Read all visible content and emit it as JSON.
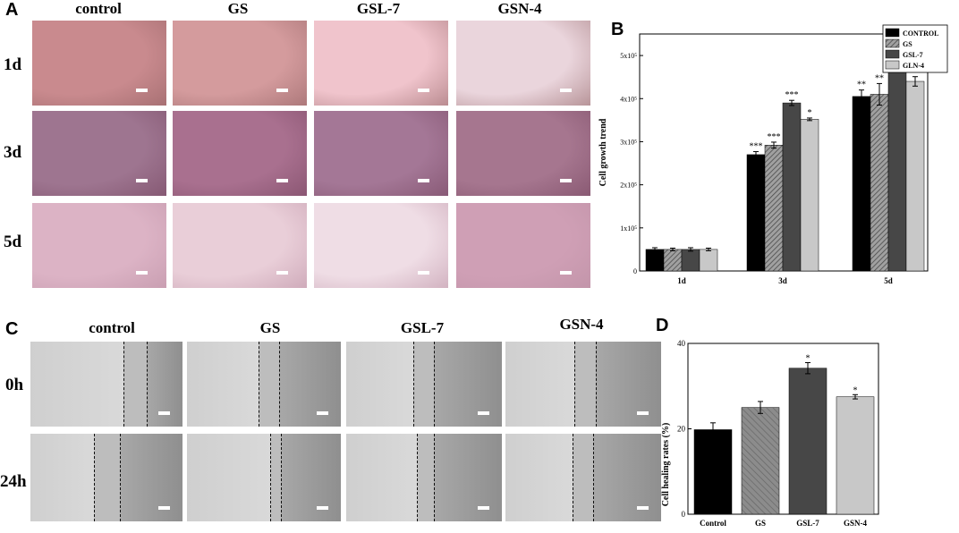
{
  "panels": {
    "A": {
      "letter": "A",
      "columns": [
        "control",
        "GS",
        "GSL-7",
        "GSN-4"
      ],
      "rows": [
        "1d",
        "3d",
        "5d"
      ]
    },
    "B": {
      "letter": "B"
    },
    "C": {
      "letter": "C",
      "columns": [
        "control",
        "GS",
        "GSL-7",
        "GSN-4"
      ],
      "rows": [
        "0h",
        "24h"
      ]
    },
    "D": {
      "letter": "D"
    }
  },
  "colors": {
    "control": "#000000",
    "gs": "#8c8c8c",
    "gsl7": "#474747",
    "gln4": "#c8c8c8"
  },
  "chart_data": [
    {
      "id": "B",
      "type": "bar",
      "ylabel": "Cell growth trend",
      "categories": [
        "1d",
        "3d",
        "5d"
      ],
      "ylim": [
        0,
        550000
      ],
      "yticks": [
        0,
        100000,
        200000,
        300000,
        400000,
        500000
      ],
      "ytick_labels": [
        "0",
        "1x10⁵",
        "2x10⁵",
        "3x10⁵",
        "4x10⁵",
        "5x10⁵"
      ],
      "legend_position": "top-right",
      "series": [
        {
          "name": "CONTROL",
          "values": [
            50000,
            270000,
            405000
          ],
          "errors": [
            4000,
            7000,
            15000
          ],
          "stars": [
            "",
            "***",
            "**"
          ],
          "fill": "solid-black"
        },
        {
          "name": "GS",
          "values": [
            50000,
            292000,
            410000
          ],
          "errors": [
            3000,
            7000,
            25000
          ],
          "stars": [
            "",
            "***",
            "**"
          ],
          "fill": "hatched-grey"
        },
        {
          "name": "GSL-7",
          "values": [
            50000,
            390000,
            503000
          ],
          "errors": [
            4000,
            6000,
            14000
          ],
          "stars": [
            "",
            "***",
            "***"
          ],
          "fill": "solid-dark-grey"
        },
        {
          "name": "GLN-4",
          "values": [
            50000,
            352000,
            440000
          ],
          "errors": [
            3000,
            3000,
            11000
          ],
          "stars": [
            "",
            "*",
            "***"
          ],
          "fill": "solid-light-grey"
        }
      ]
    },
    {
      "id": "D",
      "type": "bar",
      "ylabel": "Cell healing rates (%)",
      "categories": [
        "Control",
        "GS",
        "GSL-7",
        "GSN-4"
      ],
      "values": [
        19.8,
        25.0,
        34.2,
        27.5
      ],
      "errors": [
        1.6,
        1.4,
        1.3,
        0.5
      ],
      "stars": [
        "",
        "",
        "*",
        "*"
      ],
      "ylim": [
        0,
        40
      ],
      "yticks": [
        0,
        20,
        40
      ]
    }
  ]
}
